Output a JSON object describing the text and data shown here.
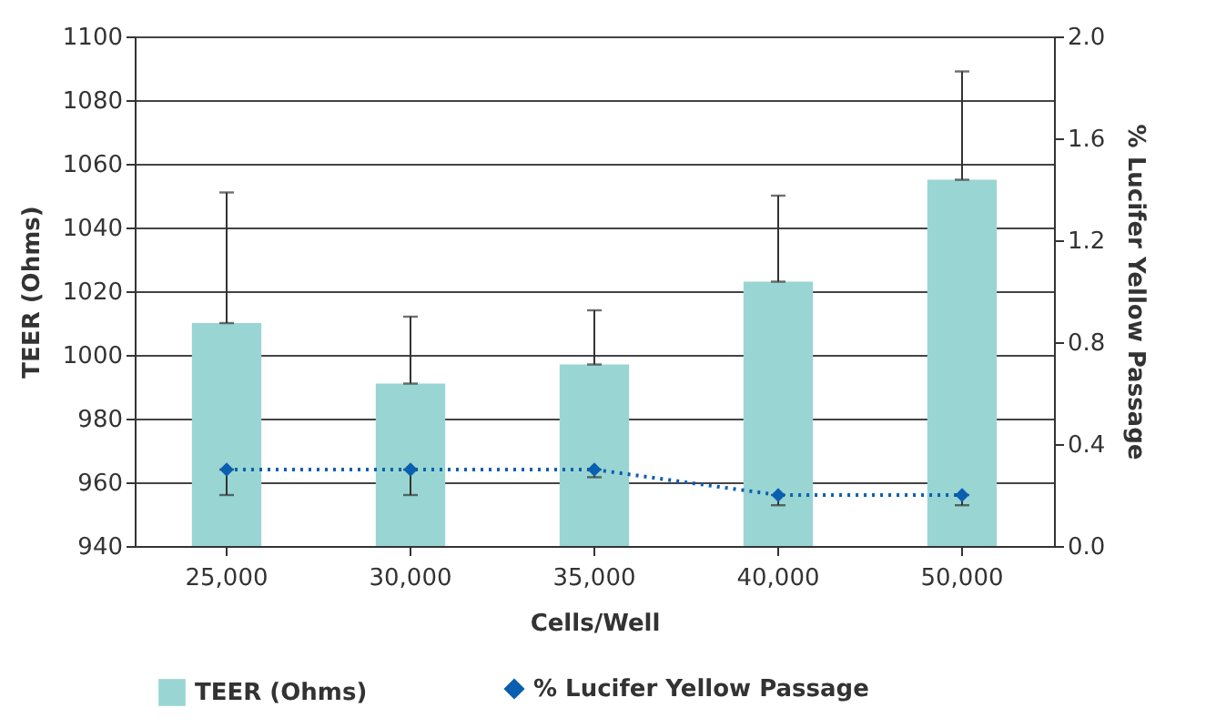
{
  "chart_data": {
    "type": "bar",
    "xlabel": "Cells/Well",
    "ylabel": "TEER (Ohms)",
    "y2label": "% Lucifer Yellow Passage",
    "categories": [
      "25,000",
      "30,000",
      "35,000",
      "40,000",
      "50,000"
    ],
    "series": [
      {
        "name": "TEER (Ohms)",
        "color": "#99d5d2",
        "values": [
          1010,
          991,
          997,
          1023,
          1055
        ],
        "errors": [
          [
            1010,
            1051
          ],
          [
            991,
            1012
          ],
          [
            997,
            1014
          ],
          [
            1023,
            1050
          ],
          [
            1055,
            1089
          ]
        ]
      },
      {
        "name": "% Lucifer Yellow Passage",
        "type": "line",
        "axis": "y2",
        "color": "#0b5fb0",
        "marker": "diamond",
        "line_style": "dotted",
        "values": [
          0.3,
          0.3,
          0.3,
          0.2,
          0.2
        ],
        "errors": [
          [
            0.2,
            0.3
          ],
          [
            0.2,
            0.3
          ],
          [
            0.27,
            0.3
          ],
          [
            0.16,
            0.2
          ],
          [
            0.16,
            0.2
          ]
        ]
      }
    ],
    "ylim": [
      940,
      1100
    ],
    "yticks": [
      940,
      960,
      980,
      1000,
      1020,
      1040,
      1060,
      1080,
      1100
    ],
    "y2lim": [
      0,
      2
    ],
    "y2ticks": [
      {
        "value": 0,
        "label": "0.0"
      },
      {
        "value": 0.4,
        "label": "0.4"
      },
      {
        "value": 0.8,
        "label": "0.8"
      },
      {
        "value": 1.2,
        "label": "1.2"
      },
      {
        "value": 1.6,
        "label": "1.6"
      },
      {
        "value": 2,
        "label": "2.0"
      }
    ],
    "grid": "y",
    "legend": "bottom"
  }
}
